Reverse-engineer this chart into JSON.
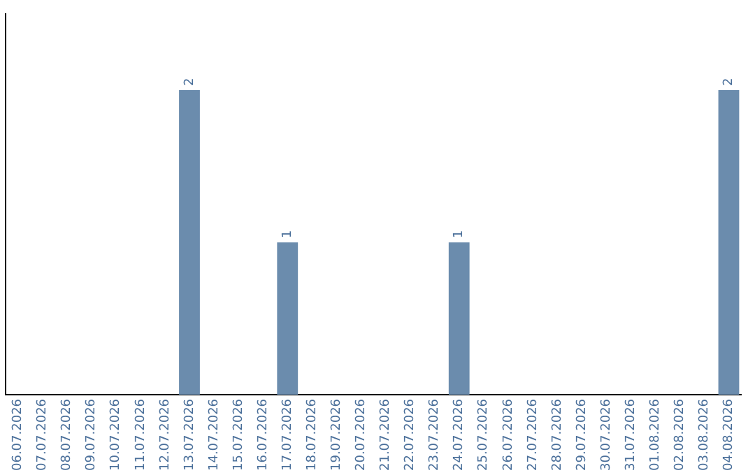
{
  "chart_data": {
    "type": "bar",
    "categories": [
      "06.07.2026",
      "07.07.2026",
      "08.07.2026",
      "09.07.2026",
      "10.07.2026",
      "11.07.2026",
      "12.07.2026",
      "13.07.2026",
      "14.07.2026",
      "15.07.2026",
      "16.07.2026",
      "17.07.2026",
      "18.07.2026",
      "19.07.2026",
      "20.07.2026",
      "21.07.2026",
      "22.07.2026",
      "23.07.2026",
      "24.07.2026",
      "25.07.2026",
      "26.07.2026",
      "27.07.2026",
      "28.07.2026",
      "29.07.2026",
      "30.07.2026",
      "31.07.2026",
      "01.08.2026",
      "02.08.2026",
      "03.08.2026",
      "04.08.2026"
    ],
    "values": [
      0,
      0,
      0,
      0,
      0,
      0,
      0,
      2,
      0,
      0,
      0,
      1,
      0,
      0,
      0,
      0,
      0,
      0,
      1,
      0,
      0,
      0,
      0,
      0,
      0,
      0,
      0,
      0,
      0,
      2
    ],
    "color": "#6b8cad",
    "value_labels": [
      null,
      null,
      null,
      null,
      null,
      null,
      null,
      "2",
      null,
      null,
      null,
      "1",
      null,
      null,
      null,
      null,
      null,
      null,
      "1",
      null,
      null,
      null,
      null,
      null,
      null,
      null,
      null,
      null,
      null,
      "2"
    ],
    "grid": false,
    "legend": false,
    "tick_labels": "x"
  }
}
